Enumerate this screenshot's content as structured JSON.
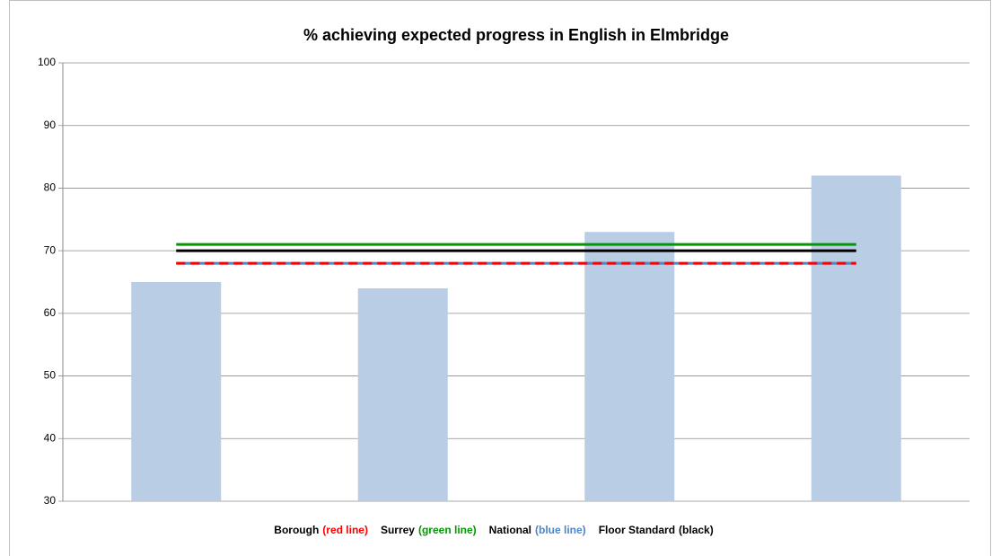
{
  "chart_data": {
    "type": "bar",
    "title": "% achieving expected progress in English in Elmbridge",
    "categories": [
      null,
      null,
      null,
      null
    ],
    "values": [
      65,
      64,
      73,
      82
    ],
    "color": "#b9cde5",
    "ylim": [
      30,
      100
    ],
    "yticks": [
      30,
      40,
      50,
      60,
      70,
      80,
      90,
      100
    ],
    "grid": true,
    "lines": [
      {
        "name": "Borough",
        "legend_note": "(red line)",
        "color": "#ff0000",
        "style": "dashed",
        "values": [
          68,
          68,
          68,
          68
        ]
      },
      {
        "name": "Surrey",
        "legend_note": "(green line)",
        "color": "#009a00",
        "style": "solid",
        "values": [
          71,
          71,
          71,
          71
        ]
      },
      {
        "name": "National",
        "legend_note": "(blue line)",
        "color": "#4a86c8",
        "style": "solid",
        "values": [
          68,
          68,
          68,
          68
        ]
      },
      {
        "name": "Floor Standard",
        "legend_note": "(black)",
        "color": "#000000",
        "style": "solid",
        "values": [
          70,
          70,
          70,
          70
        ]
      }
    ]
  }
}
